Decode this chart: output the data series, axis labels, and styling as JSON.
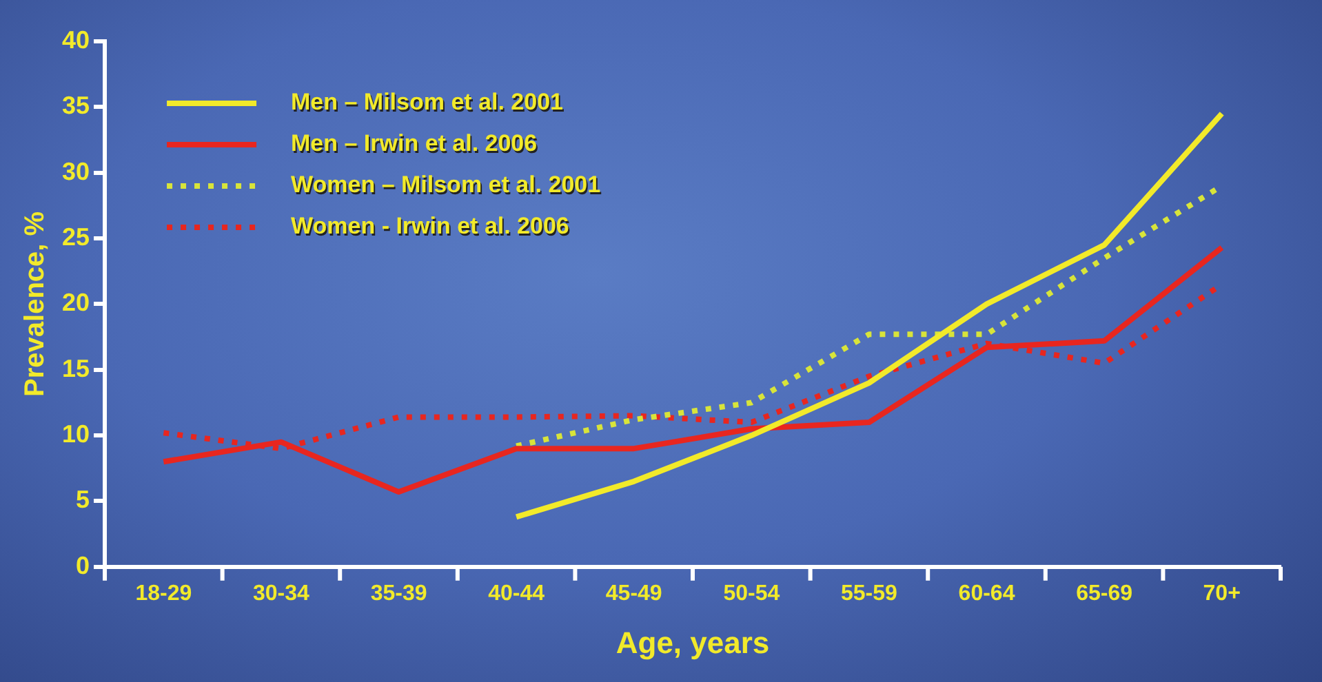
{
  "chart_data": {
    "type": "line",
    "xlabel": "Age, years",
    "ylabel": "Prevalence, %",
    "categories": [
      "18-29",
      "30-34",
      "35-39",
      "40-44",
      "45-49",
      "50-54",
      "55-59",
      "60-64",
      "65-69",
      "70+"
    ],
    "ylim": [
      0,
      40
    ],
    "yticks": [
      0,
      5,
      10,
      15,
      20,
      25,
      30,
      35,
      40
    ],
    "grid": false,
    "legend": "top left",
    "marker": "none",
    "series": [
      {
        "name": "Men – Milsom et al. 2001",
        "color": "#f2ea2a",
        "line_style": "solid",
        "values": [
          null,
          null,
          null,
          3.8,
          6.5,
          10,
          14,
          20,
          24.5,
          34.5
        ]
      },
      {
        "name": "Men – Irwin et al. 2006",
        "color": "#e8261f",
        "line_style": "solid",
        "values": [
          8,
          9.5,
          5.7,
          9,
          9,
          10.5,
          11,
          16.7,
          17.2,
          24.3
        ]
      },
      {
        "name": "Women – Milsom et al. 2001",
        "color": "#d8e43a",
        "line_style": "dotted",
        "values": [
          null,
          null,
          null,
          9.2,
          11.2,
          12.5,
          17.7,
          17.7,
          23.5,
          29
        ]
      },
      {
        "name": "Women - Irwin et al. 2006",
        "color": "#e8261f",
        "line_style": "dotted",
        "values": [
          10.2,
          9,
          11.4,
          11.4,
          11.5,
          11,
          14.5,
          17,
          15.5,
          21.5
        ]
      }
    ]
  }
}
